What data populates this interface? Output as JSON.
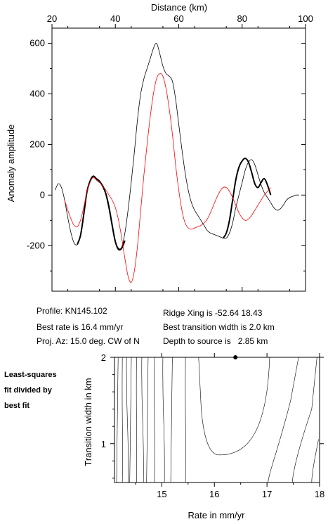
{
  "info": {
    "profile": "Profile: KN145.102",
    "best_rate": "Best rate is 16.4 mm/yr",
    "proj_az": "Proj. Az: 15.0 deg. CW of N",
    "ridge_xing": "Ridge Xing is -52.64 18.43",
    "best_transition": "Best transition width is 2.0 km",
    "depth": "Depth to source is   2.85 km"
  },
  "side_label": [
    "Least-squares",
    "fit divided by",
    "best fit"
  ],
  "colors": {
    "observed": "#000000",
    "model": "#ff0000",
    "contour": "#000000"
  },
  "chart_data": [
    {
      "type": "line",
      "xlabel": "Distance (km)",
      "ylabel": "Anomaly amplitude",
      "xaxis_position": "top",
      "xlim": [
        20,
        100
      ],
      "ylim": [
        -380,
        660
      ],
      "xticks": [
        20,
        40,
        60,
        80,
        100
      ],
      "yticks": [
        -200,
        0,
        200,
        400,
        600
      ],
      "series": [
        {
          "style": "thin-black",
          "x": [
            21,
            22,
            23,
            24,
            25,
            26,
            27,
            28,
            29,
            30,
            31,
            32,
            33,
            34,
            35,
            36,
            37,
            38,
            39,
            40,
            41,
            42,
            43,
            44,
            45,
            46,
            47,
            48,
            49,
            50,
            51,
            52,
            53,
            54,
            55,
            56,
            57,
            58,
            59,
            60,
            61,
            62,
            63,
            64,
            65,
            66,
            67,
            68,
            69,
            70,
            71,
            72,
            73,
            74,
            75,
            76,
            77,
            78,
            79,
            80,
            81,
            82,
            83,
            84,
            85,
            86,
            87,
            88,
            89,
            90,
            91,
            92,
            93,
            94,
            95,
            96,
            97,
            98
          ],
          "y": [
            20,
            45,
            30,
            -20,
            -90,
            -150,
            -190,
            -195,
            -160,
            -80,
            10,
            55,
            75,
            60,
            50,
            40,
            10,
            -40,
            -110,
            -180,
            -210,
            -205,
            -150,
            -60,
            50,
            170,
            300,
            400,
            460,
            500,
            540,
            580,
            600,
            560,
            510,
            480,
            470,
            450,
            380,
            280,
            180,
            90,
            20,
            -30,
            -60,
            -80,
            -100,
            -120,
            -140,
            -150,
            -155,
            -160,
            -165,
            -170,
            -170,
            -150,
            -110,
            -50,
            0,
            50,
            100,
            130,
            140,
            120,
            80,
            40,
            10,
            -10,
            -30,
            -50,
            -60,
            -55,
            -40,
            -20,
            -10,
            -5,
            0,
            0
          ]
        },
        {
          "style": "thick-black",
          "segments": [
            {
              "x": [
                28,
                29,
                30,
                31,
                32,
                33,
                34,
                35,
                36,
                37,
                38,
                39,
                40,
                41,
                42,
                43
              ],
              "y": [
                -195,
                -160,
                -80,
                10,
                55,
                75,
                65,
                55,
                35,
                5,
                -50,
                -120,
                -185,
                -215,
                -210,
                -180
              ]
            },
            {
              "x": [
                74,
                75,
                76,
                77,
                78,
                79,
                80,
                81,
                82,
                83,
                84,
                85,
                86,
                87,
                88,
                89
              ],
              "y": [
                -170,
                -150,
                -100,
                -20,
                60,
                110,
                135,
                145,
                130,
                90,
                45,
                30,
                50,
                65,
                40,
                0
              ]
            }
          ]
        },
        {
          "style": "thin-red",
          "x": [
            24,
            25,
            26,
            27,
            28,
            29,
            30,
            31,
            32,
            33,
            34,
            35,
            36,
            37,
            38,
            39,
            40,
            41,
            42,
            43,
            44,
            45,
            46,
            47,
            48,
            49,
            50,
            51,
            52,
            53,
            54,
            55,
            56,
            57,
            58,
            59,
            60,
            61,
            62,
            63,
            64,
            65,
            66,
            67,
            68,
            69,
            70,
            71,
            72,
            73,
            74,
            75,
            76,
            77,
            78,
            79,
            80,
            81,
            82,
            83,
            84,
            85,
            86,
            87,
            88,
            89
          ],
          "y": [
            -20,
            -60,
            -95,
            -120,
            -125,
            -100,
            -50,
            10,
            50,
            70,
            60,
            50,
            35,
            20,
            0,
            -20,
            -50,
            -100,
            -170,
            -250,
            -320,
            -345,
            -300,
            -200,
            -60,
            80,
            200,
            310,
            400,
            460,
            480,
            470,
            420,
            340,
            240,
            120,
            20,
            -60,
            -110,
            -130,
            -135,
            -130,
            -125,
            -120,
            -110,
            -95,
            -70,
            -40,
            -10,
            15,
            30,
            30,
            15,
            -10,
            -40,
            -70,
            -90,
            -100,
            -95,
            -80,
            -60,
            -40,
            -20,
            0,
            15,
            30
          ]
        }
      ]
    },
    {
      "type": "contour",
      "xlabel": "Rate in mm/yr",
      "ylabel": "Transition width in km",
      "xlim": [
        14.1,
        18.0
      ],
      "ylim": [
        0.55,
        2.0
      ],
      "xticks": [
        15,
        16,
        17,
        18
      ],
      "yticks": [
        1,
        2
      ],
      "best_fit_marker": {
        "x": 16.4,
        "y": 2.0
      }
    }
  ]
}
